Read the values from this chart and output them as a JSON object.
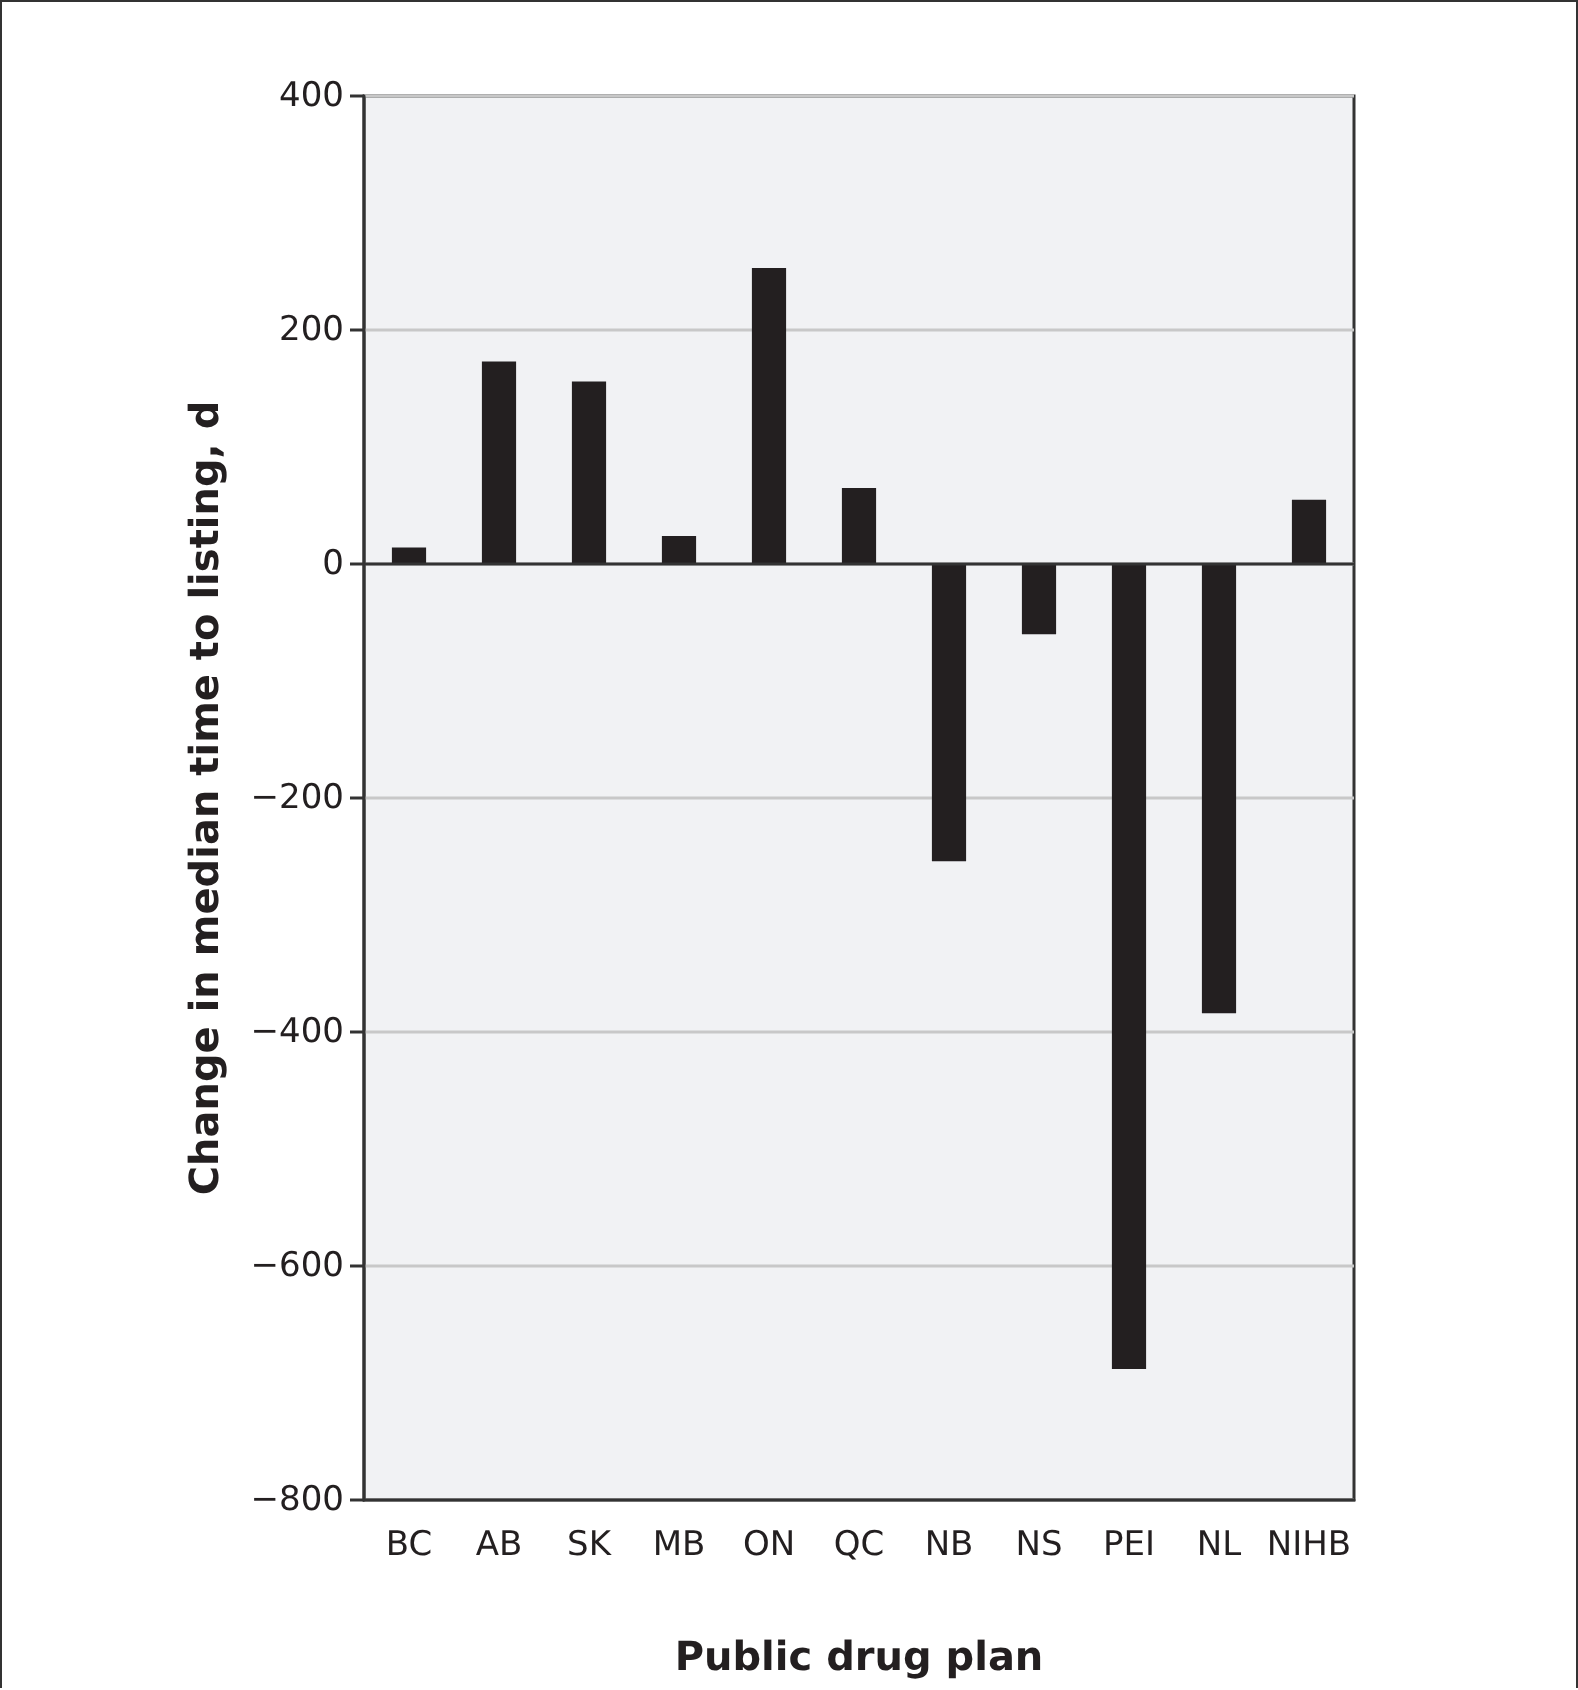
{
  "chart_data": {
    "type": "bar",
    "xlabel": "Public drug plan",
    "ylabel": "Change in median time to listing, d",
    "categories": [
      "BC",
      "AB",
      "SK",
      "MB",
      "ON",
      "QC",
      "NB",
      "NS",
      "PEI",
      "NL",
      "NIHB"
    ],
    "values": [
      14,
      173,
      156,
      24,
      253,
      65,
      -254,
      -60,
      -688,
      -384,
      55
    ],
    "color": "#231f20",
    "ylim": [
      -800,
      400
    ],
    "yticks": [
      {
        "value": -800,
        "label": "−800"
      },
      {
        "value": -600,
        "label": "−600"
      },
      {
        "value": -400,
        "label": "−400"
      },
      {
        "value": -200,
        "label": "−200"
      },
      0,
      200,
      400
    ],
    "grid": "y"
  }
}
